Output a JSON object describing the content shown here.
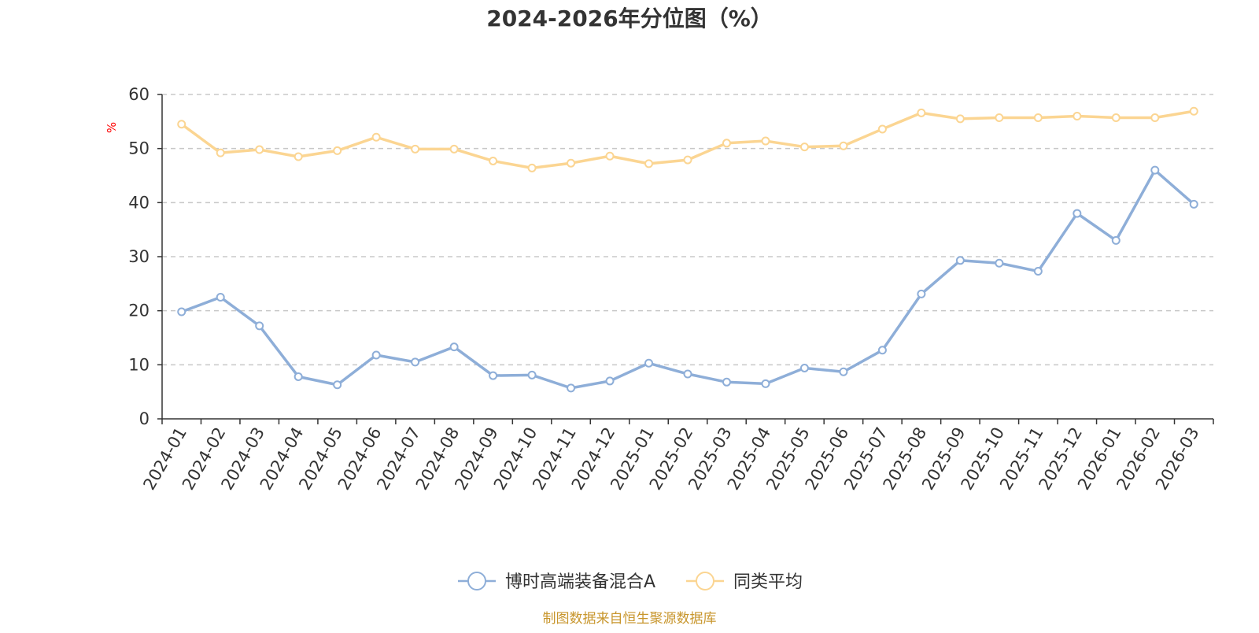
{
  "chart_data": {
    "type": "line",
    "title": "2024-2026年分位图（%）",
    "ylabel": "%",
    "xlabel": "",
    "ylim": [
      0,
      60
    ],
    "yticks": [
      0,
      10,
      20,
      30,
      40,
      50,
      60
    ],
    "grid": true,
    "legend_position": "bottom-center",
    "categories": [
      "2024-01",
      "2024-02",
      "2024-03",
      "2024-04",
      "2024-05",
      "2024-06",
      "2024-07",
      "2024-08",
      "2024-09",
      "2024-10",
      "2024-11",
      "2024-12",
      "2025-01",
      "2025-02",
      "2025-03",
      "2025-04",
      "2025-05",
      "2025-06",
      "2025-07",
      "2025-08",
      "2025-09",
      "2025-10",
      "2025-11",
      "2025-12",
      "2026-01",
      "2026-02",
      "2026-03"
    ],
    "series": [
      {
        "name": "博时高端装备混合A",
        "color": "#8eaed8",
        "values": [
          19.8,
          22.5,
          17.2,
          7.8,
          6.3,
          11.8,
          10.5,
          13.3,
          8.0,
          8.1,
          5.7,
          7.0,
          10.3,
          8.3,
          6.8,
          6.5,
          9.4,
          8.7,
          12.7,
          23.1,
          29.3,
          28.8,
          27.3,
          38.0,
          33.0,
          46.0,
          39.7
        ]
      },
      {
        "name": "同类平均",
        "color": "#fbd592",
        "values": [
          54.5,
          49.2,
          49.8,
          48.5,
          49.6,
          52.1,
          49.9,
          49.9,
          47.7,
          46.4,
          47.3,
          48.6,
          47.2,
          47.9,
          51.0,
          51.4,
          50.3,
          50.5,
          53.6,
          56.6,
          55.5,
          55.7,
          55.7,
          56.0,
          55.7,
          55.7,
          56.9
        ]
      }
    ],
    "source": "制图数据来自恒生聚源数据库"
  },
  "colors": {
    "title": "#333333",
    "axis": "#333333",
    "grid": "#c8c8c8",
    "ylabel": "#ff0000",
    "source": "#c8962d"
  }
}
